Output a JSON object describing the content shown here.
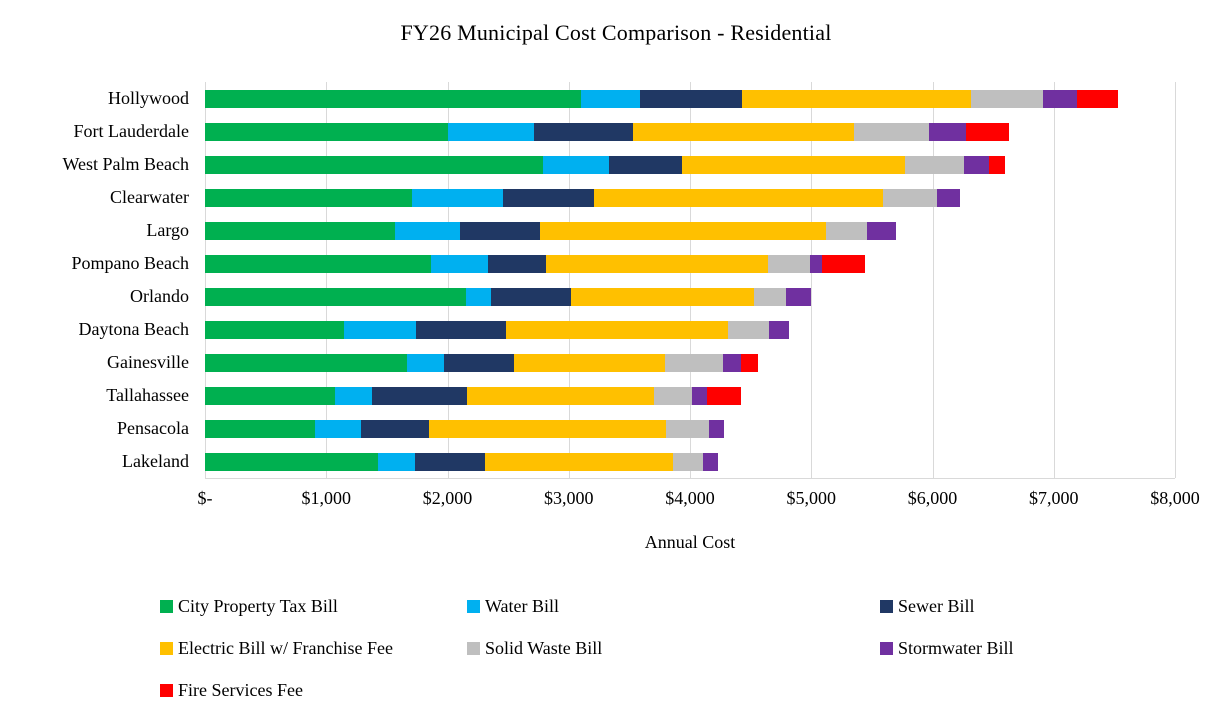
{
  "chart_data": {
    "type": "bar",
    "orientation": "horizontal",
    "stacked": true,
    "title": "FY26 Municipal Cost Comparison - Residential",
    "xlabel": "Annual Cost",
    "xlim": [
      0,
      8000
    ],
    "grid": true,
    "legend_position": "bottom",
    "x_ticks": [
      {
        "label": "$-",
        "value": 0
      },
      {
        "label": "$1,000",
        "value": 1000
      },
      {
        "label": "$2,000",
        "value": 2000
      },
      {
        "label": "$3,000",
        "value": 3000
      },
      {
        "label": "$4,000",
        "value": 4000
      },
      {
        "label": "$5,000",
        "value": 5000
      },
      {
        "label": "$6,000",
        "value": 6000
      },
      {
        "label": "$7,000",
        "value": 7000
      },
      {
        "label": "$8,000",
        "value": 8000
      }
    ],
    "categories": [
      "Hollywood",
      "Fort Lauderdale",
      "West Palm Beach",
      "Clearwater",
      "Largo",
      "Pompano Beach",
      "Orlando",
      "Daytona Beach",
      "Gainesville",
      "Tallahassee",
      "Pensacola",
      "Lakeland"
    ],
    "series": [
      {
        "name": "City Property Tax Bill",
        "color": "#00B050",
        "values": [
          3100,
          2000,
          2790,
          1710,
          1570,
          1860,
          2150,
          1150,
          1670,
          1070,
          910,
          1430
        ]
      },
      {
        "name": "Water Bill",
        "color": "#00B0F0",
        "values": [
          490,
          710,
          540,
          750,
          530,
          470,
          210,
          590,
          300,
          310,
          380,
          300
        ]
      },
      {
        "name": "Sewer Bill",
        "color": "#203864",
        "values": [
          840,
          820,
          600,
          750,
          660,
          480,
          660,
          740,
          580,
          780,
          560,
          580
        ]
      },
      {
        "name": "Electric Bill w/ Franchise Fee",
        "color": "#FFC000",
        "values": [
          1890,
          1820,
          1840,
          2380,
          2360,
          1830,
          1510,
          1830,
          1240,
          1540,
          1950,
          1550
        ]
      },
      {
        "name": "Solid Waste Bill",
        "color": "#BFBFBF",
        "values": [
          590,
          620,
          490,
          450,
          340,
          350,
          260,
          340,
          480,
          320,
          360,
          250
        ]
      },
      {
        "name": "Stormwater Bill",
        "color": "#7030A0",
        "values": [
          280,
          310,
          210,
          190,
          240,
          100,
          210,
          170,
          150,
          120,
          120,
          120
        ]
      },
      {
        "name": "Fire Services Fee",
        "color": "#FF0000",
        "values": [
          340,
          350,
          130,
          0,
          0,
          350,
          0,
          0,
          140,
          280,
          0,
          0
        ]
      }
    ],
    "gridline_color": "#D9D9D9"
  }
}
